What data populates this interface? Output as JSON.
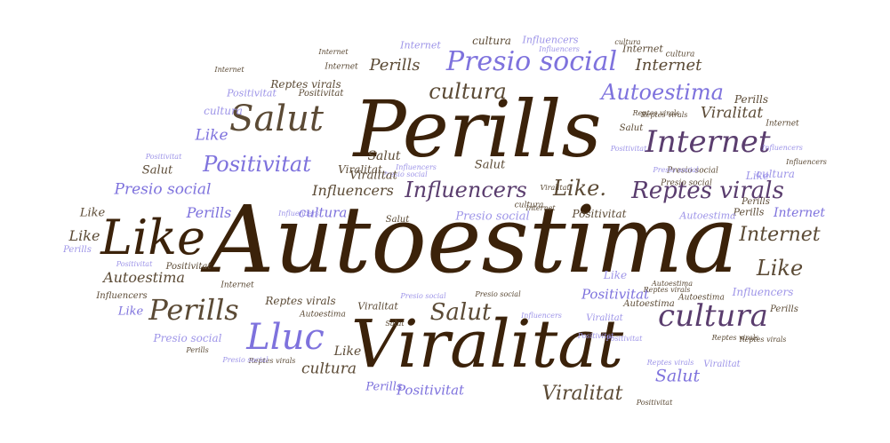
{
  "colors": {
    "dark": "#3b220a",
    "brown": "#5b4a35",
    "purple": "#5a3d6e",
    "lavender": "#7e72dd",
    "lavender_light": "#9e95e8"
  },
  "words": [
    {
      "text": "Autoestima"
    },
    {
      "text": "Perills"
    },
    {
      "text": "Viralitat"
    },
    {
      "text": "Like"
    },
    {
      "text": "Salut"
    },
    {
      "text": "Internet"
    },
    {
      "text": "cultura"
    },
    {
      "text": "Reptes virals"
    },
    {
      "text": "Influencers"
    },
    {
      "text": "Presio social"
    },
    {
      "text": "Autoestima"
    },
    {
      "text": "Positivitat"
    },
    {
      "text": "Lluc"
    },
    {
      "text": "Perills"
    },
    {
      "text": "cultura"
    },
    {
      "text": "Salut"
    },
    {
      "text": "Like."
    },
    {
      "text": "Viralitat"
    },
    {
      "text": "Internet"
    },
    {
      "text": "Like"
    },
    {
      "text": "Internet"
    },
    {
      "text": "Perills"
    },
    {
      "text": "Presio social"
    },
    {
      "text": "cultura"
    },
    {
      "text": "Influencers"
    },
    {
      "text": "cultura"
    },
    {
      "text": "Positivitat"
    },
    {
      "text": "Like"
    },
    {
      "text": "Perills"
    },
    {
      "text": "Viralitat"
    },
    {
      "text": "Salut"
    },
    {
      "text": "Salut"
    },
    {
      "text": "Autoestima"
    },
    {
      "text": "Salut"
    },
    {
      "text": "Internet"
    },
    {
      "text": "Like"
    },
    {
      "text": "Perills"
    },
    {
      "text": "Positivitat"
    },
    {
      "text": "Like"
    },
    {
      "text": "Reptes virals"
    },
    {
      "text": "Influencers"
    },
    {
      "text": "Presio social"
    },
    {
      "text": "Like"
    },
    {
      "text": "cultura"
    },
    {
      "text": "Influencers"
    },
    {
      "text": "Internet"
    },
    {
      "text": "Perills"
    },
    {
      "text": "cultura"
    },
    {
      "text": "Viralitat"
    },
    {
      "text": "Reptes virals"
    },
    {
      "text": "Positivitat"
    },
    {
      "text": "Positivitat"
    },
    {
      "text": "Like"
    },
    {
      "text": "Like"
    },
    {
      "text": "Perills"
    },
    {
      "text": "Positivitat"
    },
    {
      "text": "Autoestima"
    },
    {
      "text": "Perills"
    },
    {
      "text": "Salut"
    },
    {
      "text": "Viralitat"
    },
    {
      "text": "Internet"
    },
    {
      "text": "Positivitat"
    },
    {
      "text": "Presio social"
    },
    {
      "text": "Salut"
    },
    {
      "text": "Viralitat"
    },
    {
      "text": "Reptes virals"
    },
    {
      "text": "Reptes virals"
    },
    {
      "text": "Internet"
    },
    {
      "text": "Autoestima"
    },
    {
      "text": "Presio social"
    },
    {
      "text": "Positivitat"
    },
    {
      "text": "Influencers"
    },
    {
      "text": "cultura"
    },
    {
      "text": "Reptes virals"
    },
    {
      "text": "Presio social"
    },
    {
      "text": "Salut"
    },
    {
      "text": "Influencers"
    },
    {
      "text": "Internet"
    },
    {
      "text": "Internet"
    },
    {
      "text": "Autoestima"
    },
    {
      "text": "Positivitat"
    },
    {
      "text": "Positivitat"
    },
    {
      "text": "Influencers"
    },
    {
      "text": "Presio social"
    },
    {
      "text": "Presio social"
    },
    {
      "text": "cultura"
    },
    {
      "text": "Reptes virals"
    },
    {
      "text": "Salut"
    },
    {
      "text": "Viralitat"
    },
    {
      "text": "Positivitat"
    },
    {
      "text": "Internet"
    },
    {
      "text": "Influencers"
    },
    {
      "text": "Perills"
    },
    {
      "text": "Like"
    },
    {
      "text": "Autoestima"
    },
    {
      "text": "Perills"
    },
    {
      "text": "Influencers"
    },
    {
      "text": "Reptes virals"
    },
    {
      "text": "Presio social"
    },
    {
      "text": "Positivitat"
    },
    {
      "text": "Viralitat"
    },
    {
      "text": "Reptes virals"
    },
    {
      "text": "Internet"
    },
    {
      "text": "cultura"
    },
    {
      "text": "Influencers"
    },
    {
      "text": "Presio social"
    },
    {
      "text": "Reptes virals"
    },
    {
      "text": "Internet"
    },
    {
      "text": "Autoestima"
    },
    {
      "text": "Perills"
    },
    {
      "text": "Presio social"
    },
    {
      "text": "Viralitat"
    },
    {
      "text": "Positivitat"
    },
    {
      "text": "cultura"
    },
    {
      "text": "Influencers"
    }
  ]
}
